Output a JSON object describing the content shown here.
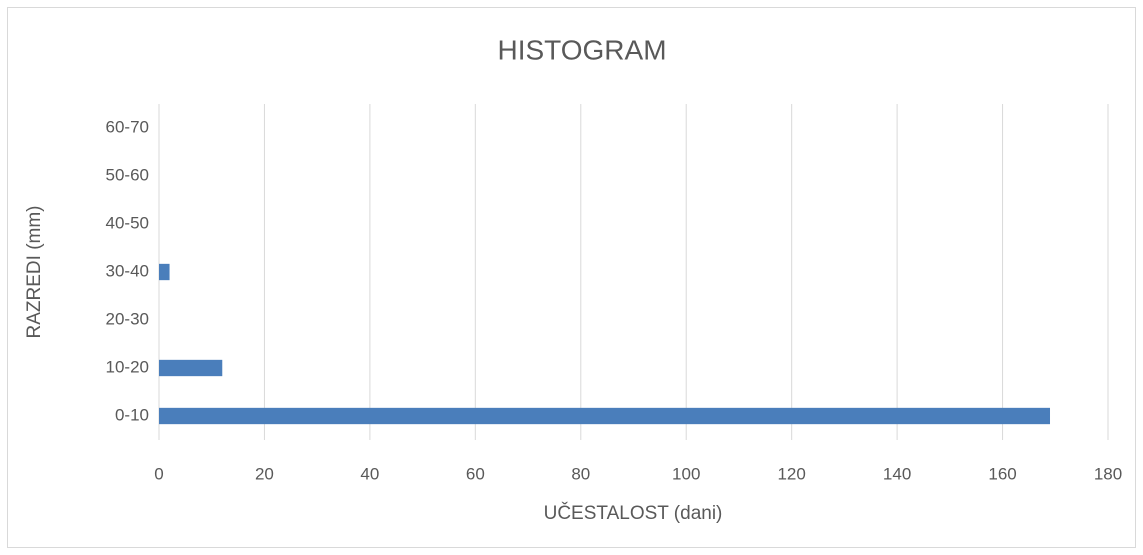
{
  "chart_data": {
    "type": "bar",
    "orientation": "horizontal",
    "title": "HISTOGRAM",
    "x_label": "UČESTALOST (dani)",
    "y_label": "RAZREDI (mm)",
    "categories": [
      "0-10",
      "10-20",
      "20-30",
      "30-40",
      "40-50",
      "50-60",
      "60-70"
    ],
    "values": [
      169,
      12,
      0,
      2,
      0,
      0,
      0
    ],
    "color": "#4a7ebb",
    "xlim": [
      0,
      180
    ],
    "xticks": [
      0,
      20,
      40,
      60,
      80,
      100,
      120,
      140,
      160,
      180
    ],
    "grid": true
  }
}
